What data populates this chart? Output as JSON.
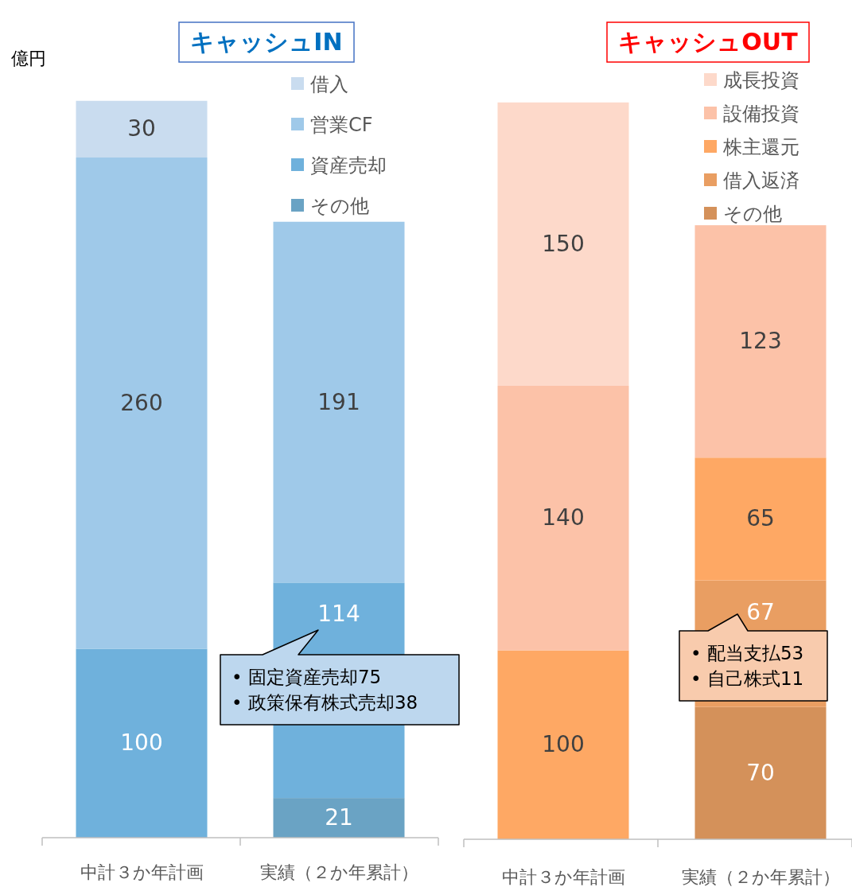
{
  "chart_data": [
    {
      "type": "bar",
      "title": "キャッシュIN",
      "ylabel": "億円",
      "stacked": true,
      "data_labels": true,
      "legend": "top right",
      "categories": [
        "中計３か年計画",
        "実績（２か年累計）"
      ],
      "series": [
        {
          "name": "その他",
          "color": "#6aa3c4",
          "values": [
            null,
            21
          ]
        },
        {
          "name": "資産売却",
          "color": "#6fb1dc",
          "values": [
            100,
            114
          ]
        },
        {
          "name": "営業CF",
          "color": "#9fc9e9",
          "values": [
            260,
            191
          ]
        },
        {
          "name": "借入",
          "color": "#c9dcef",
          "values": [
            30,
            null
          ]
        }
      ],
      "annotations": [
        "• 固定資産売却75",
        "• 政策保有株式売却38"
      ]
    },
    {
      "type": "bar",
      "title": "キャッシュOUT",
      "stacked": true,
      "data_labels": true,
      "legend": "top right",
      "categories": [
        "中計３か年計画",
        "実績（２か年累計）"
      ],
      "series": [
        {
          "name": "その他",
          "color": "#d4915a",
          "values": [
            null,
            70
          ]
        },
        {
          "name": "借入返済",
          "color": "#e99e62",
          "values": [
            null,
            67
          ]
        },
        {
          "name": "株主還元",
          "color": "#fea864",
          "values": [
            100,
            65
          ]
        },
        {
          "name": "設備投資",
          "color": "#fcc2a8",
          "values": [
            140,
            123
          ]
        },
        {
          "name": "成長投資",
          "color": "#fdd9ca",
          "values": [
            150,
            null
          ]
        }
      ],
      "annotations": [
        "• 配当支払53",
        "• 自己株式11"
      ]
    }
  ]
}
